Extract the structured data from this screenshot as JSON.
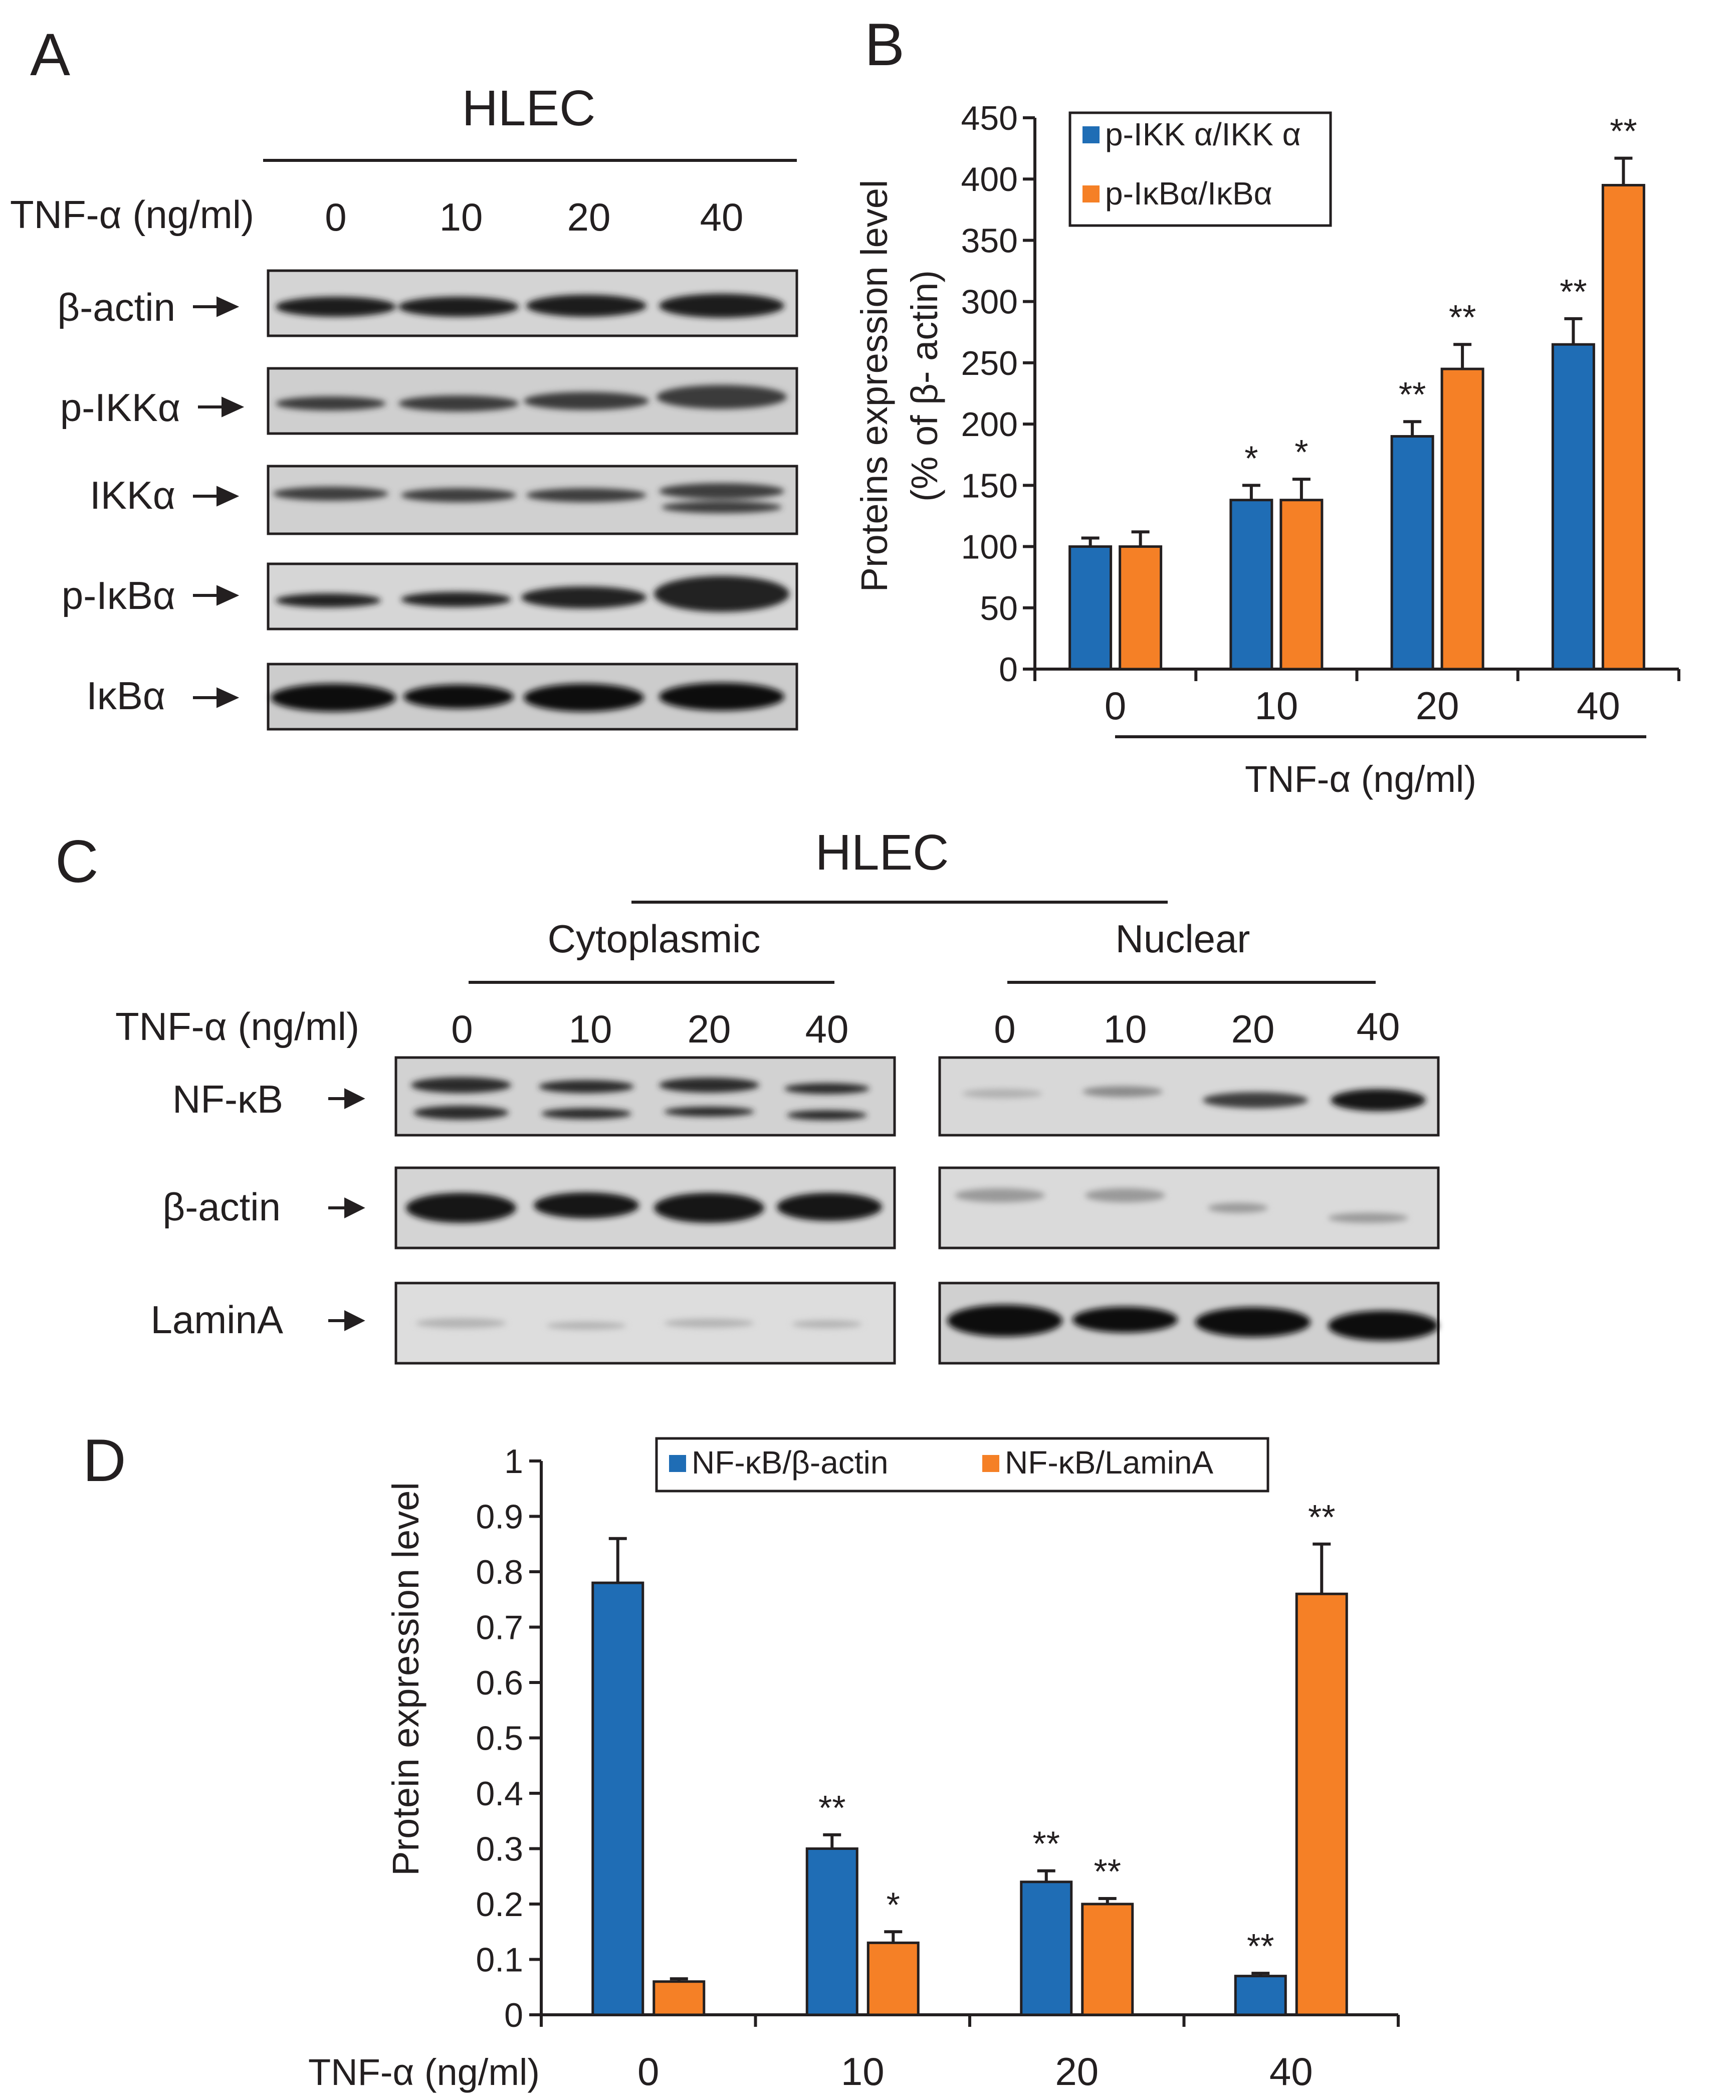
{
  "colors": {
    "blue": "#1f6db5",
    "orange": "#f58026",
    "text": "#231f20"
  },
  "panel_a": {
    "letter": "A",
    "cell": "HLEC",
    "treatment_label": "TNF-α (ng/ml)",
    "doses": [
      "0",
      "10",
      "20",
      "40"
    ],
    "rows": [
      "β-actin",
      "p-IKKα",
      "IKKα",
      "p-IκBα",
      "IκBα"
    ]
  },
  "panel_c": {
    "letter": "C",
    "cell": "HLEC",
    "fraction_left": "Cytoplasmic",
    "fraction_right": "Nuclear",
    "treatment_label": "TNF-α (ng/ml)",
    "doses": [
      "0",
      "10",
      "20",
      "40"
    ],
    "rows": [
      "NF-κB",
      "β-actin",
      "LaminA"
    ]
  },
  "chart_data": [
    {
      "panel": "B",
      "type": "bar",
      "ylabel_line1": "Proteins expression level",
      "ylabel_line2": "(% of β- actin)",
      "xlabel": "TNF-α (ng/ml)",
      "categories": [
        "0",
        "10",
        "20",
        "40"
      ],
      "ylim": [
        0,
        450
      ],
      "yticks": [
        "0",
        "50",
        "100",
        "150",
        "200",
        "250",
        "300",
        "350",
        "400",
        "450"
      ],
      "legend_position": "top-left",
      "series": [
        {
          "name": "p-IKK α/IKK α",
          "color": "#1f6db5",
          "values": [
            100,
            138,
            190,
            265
          ],
          "errors": [
            7,
            12,
            12,
            21
          ],
          "sig": [
            "",
            "*",
            "**",
            "**"
          ]
        },
        {
          "name": "p-IκBα/IκBα",
          "color": "#f58026",
          "values": [
            100,
            138,
            245,
            395
          ],
          "errors": [
            12,
            17,
            20,
            22
          ],
          "sig": [
            "",
            "*",
            "**",
            "**"
          ]
        }
      ]
    },
    {
      "panel": "D",
      "type": "bar",
      "ylabel": "Protein expression level",
      "xlabel": "TNF-α (ng/ml)",
      "categories": [
        "0",
        "10",
        "20",
        "40"
      ],
      "ylim": [
        0,
        1
      ],
      "yticks": [
        "0",
        "0.1",
        "0.2",
        "0.3",
        "0.4",
        "0.5",
        "0.6",
        "0.7",
        "0.8",
        "0.9",
        "1"
      ],
      "legend_position": "top",
      "series": [
        {
          "name": "NF-κB/β-actin",
          "color": "#1f6db5",
          "values": [
            0.78,
            0.3,
            0.24,
            0.07
          ],
          "errors": [
            0.08,
            0.025,
            0.02,
            0.005
          ],
          "sig": [
            "",
            "**",
            "**",
            "**"
          ]
        },
        {
          "name": "NF-κB/LaminA",
          "color": "#f58026",
          "values": [
            0.06,
            0.13,
            0.2,
            0.76
          ],
          "errors": [
            0.005,
            0.02,
            0.01,
            0.09
          ],
          "sig": [
            "",
            "*",
            "**",
            "**"
          ]
        }
      ]
    }
  ]
}
